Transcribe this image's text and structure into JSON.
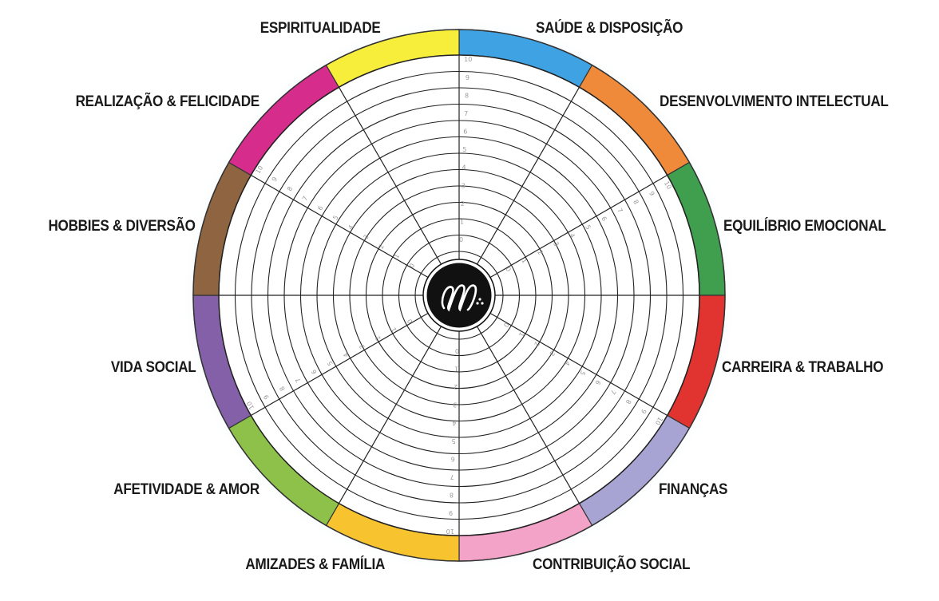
{
  "wheel": {
    "scale_min": 0,
    "scale_max": 10,
    "segments": [
      {
        "name": "SAÚDE & DISPOSIÇÃO",
        "color": "#3fa3e3"
      },
      {
        "name": "DESENVOLVIMENTO INTELECTUAL",
        "color": "#ef8a3a"
      },
      {
        "name": "EQUILÍBRIO EMOCIONAL",
        "color": "#3f9f4f"
      },
      {
        "name": "CARREIRA & TRABALHO",
        "color": "#e1332f"
      },
      {
        "name": "FINANÇAS",
        "color": "#a7a4d4"
      },
      {
        "name": "CONTRIBUIÇÃO SOCIAL",
        "color": "#f3a2c8"
      },
      {
        "name": "AMIZADES & FAMÍLIA",
        "color": "#f7c430"
      },
      {
        "name": "AFETIVIDADE & AMOR",
        "color": "#8dc14a"
      },
      {
        "name": "VIDA SOCIAL",
        "color": "#8460a8"
      },
      {
        "name": "HOBBIES & DIVERSÃO",
        "color": "#8f6440"
      },
      {
        "name": "REALIZAÇÃO & FELICIDADE",
        "color": "#d62c8c"
      },
      {
        "name": "ESPIRITUALIDADE",
        "color": "#f6ee3a"
      }
    ]
  }
}
